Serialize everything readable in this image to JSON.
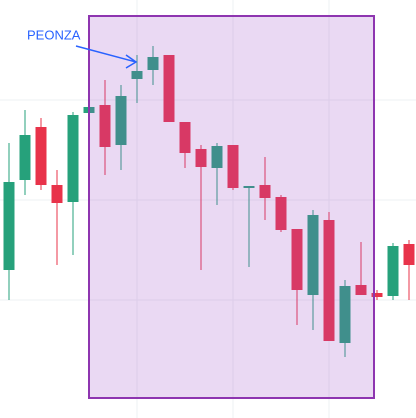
{
  "chart_data": {
    "type": "candlestick",
    "annotation": "PEONZA",
    "ylim": [
      0,
      418
    ],
    "up_color": "#26a17b",
    "down_color": "#e8334a",
    "open": [
      148,
      238,
      291,
      233,
      216,
      305,
      313,
      273,
      339,
      348,
      363,
      296,
      269,
      250,
      273,
      230,
      233,
      221,
      189,
      123,
      198,
      75,
      133,
      125,
      122,
      174
    ],
    "high": [
      275,
      308,
      300,
      248,
      306,
      316,
      338,
      333,
      363,
      372,
      363,
      296,
      273,
      275,
      273,
      232,
      261,
      223,
      189,
      208,
      206,
      138,
      176,
      128,
      175,
      178
    ],
    "low": [
      118,
      223,
      228,
      153,
      163,
      303,
      243,
      248,
      315,
      333,
      296,
      250,
      148,
      213,
      228,
      151,
      198,
      186,
      93,
      88,
      77,
      61,
      123,
      118,
      118,
      118
    ],
    "close": [
      236,
      283,
      233,
      215,
      303,
      311,
      271,
      322,
      347,
      361,
      296,
      265,
      251,
      272,
      230,
      232,
      220,
      188,
      128,
      203,
      77,
      132,
      123,
      121,
      172,
      153
    ]
  }
}
